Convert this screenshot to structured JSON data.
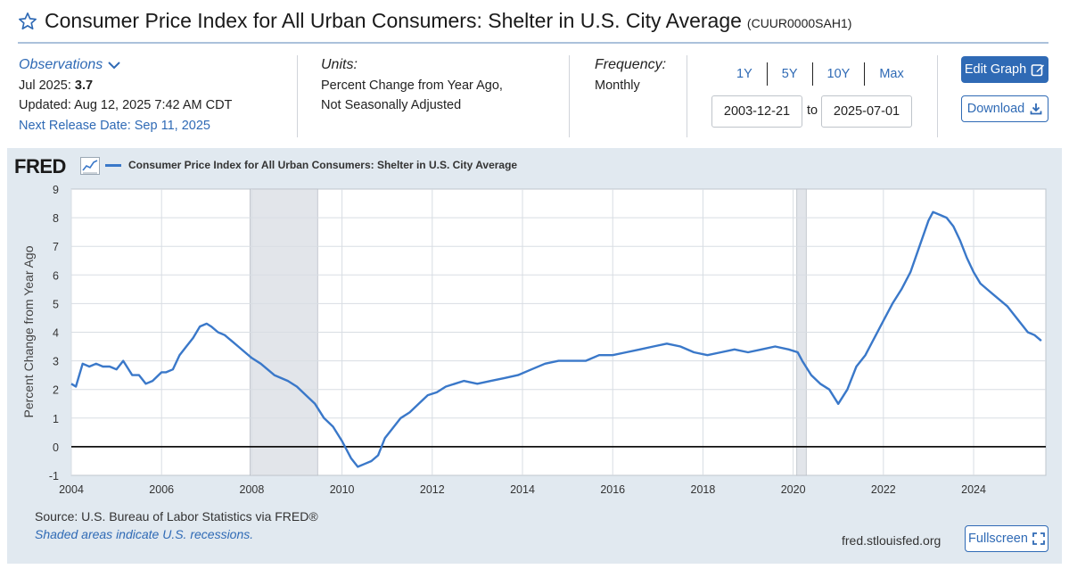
{
  "header": {
    "title": "Consumer Price Index for All Urban Consumers: Shelter in U.S. City Average",
    "series_id": "(CUUR0000SAH1)"
  },
  "observations": {
    "label": "Observations",
    "period": "Jul 2025:",
    "value": "3.7",
    "updated": "Updated: Aug 12, 2025 7:42 AM CDT",
    "next_release": "Next Release Date: Sep 11, 2025"
  },
  "units": {
    "label": "Units:",
    "line1": "Percent Change from Year Ago,",
    "line2": "Not Seasonally Adjusted"
  },
  "frequency": {
    "label": "Frequency:",
    "value": "Monthly"
  },
  "ranges": [
    "1Y",
    "5Y",
    "10Y",
    "Max"
  ],
  "date_range": {
    "start": "2003-12-21",
    "to": "to",
    "end": "2025-07-01"
  },
  "buttons": {
    "edit": "Edit Graph",
    "download": "Download",
    "fullscreen": "Fullscreen"
  },
  "graph": {
    "logo": "FRED",
    "legend": "Consumer Price Index for All Urban Consumers: Shelter in U.S. City Average",
    "source": "Source: U.S. Bureau of Labor Statistics via FRED®",
    "note": "Shaded areas indicate U.S. recessions.",
    "url": "fred.stlouisfed.org"
  },
  "colors": {
    "line": "#3a78c9",
    "recession": "#e2e5ea",
    "accent": "#2f6ab5",
    "panel": "#e1e9f0"
  },
  "chart_data": {
    "type": "line",
    "title": "",
    "xlabel": "",
    "ylabel": "Percent Change from Year Ago",
    "xlim": [
      2004.0,
      2025.6
    ],
    "ylim": [
      -1,
      9
    ],
    "yticks": [
      -1,
      0,
      1,
      2,
      3,
      4,
      5,
      6,
      7,
      8,
      9
    ],
    "xticks": [
      2004,
      2006,
      2008,
      2010,
      2012,
      2014,
      2016,
      2018,
      2020,
      2022,
      2024
    ],
    "grid": true,
    "legend_position": "top-left",
    "recessions": [
      [
        2007.96,
        2009.46
      ],
      [
        2020.08,
        2020.29
      ]
    ],
    "series": [
      {
        "name": "Consumer Price Index for All Urban Consumers: Shelter in U.S. City Average",
        "x": [
          2004.0,
          2004.1,
          2004.25,
          2004.4,
          2004.55,
          2004.7,
          2004.85,
          2005.0,
          2005.15,
          2005.35,
          2005.5,
          2005.65,
          2005.8,
          2006.0,
          2006.1,
          2006.25,
          2006.4,
          2006.55,
          2006.7,
          2006.85,
          2007.0,
          2007.1,
          2007.25,
          2007.4,
          2007.55,
          2007.7,
          2007.85,
          2008.0,
          2008.2,
          2008.35,
          2008.5,
          2008.65,
          2008.8,
          2009.0,
          2009.2,
          2009.4,
          2009.6,
          2009.8,
          2010.0,
          2010.2,
          2010.35,
          2010.5,
          2010.65,
          2010.8,
          2010.95,
          2011.1,
          2011.3,
          2011.5,
          2011.7,
          2011.9,
          2012.1,
          2012.3,
          2012.5,
          2012.7,
          2013.0,
          2013.3,
          2013.6,
          2013.9,
          2014.2,
          2014.5,
          2014.8,
          2015.1,
          2015.4,
          2015.7,
          2016.0,
          2016.3,
          2016.6,
          2016.9,
          2017.2,
          2017.5,
          2017.8,
          2018.1,
          2018.4,
          2018.7,
          2019.0,
          2019.3,
          2019.6,
          2019.9,
          2020.1,
          2020.2,
          2020.4,
          2020.6,
          2020.8,
          2021.0,
          2021.2,
          2021.4,
          2021.6,
          2021.8,
          2022.0,
          2022.2,
          2022.4,
          2022.6,
          2022.8,
          2023.0,
          2023.1,
          2023.25,
          2023.4,
          2023.55,
          2023.7,
          2023.85,
          2024.0,
          2024.15,
          2024.3,
          2024.45,
          2024.6,
          2024.75,
          2024.9,
          2025.05,
          2025.2,
          2025.35,
          2025.5
        ],
        "values": [
          2.2,
          2.1,
          2.9,
          2.8,
          2.9,
          2.8,
          2.8,
          2.7,
          3.0,
          2.5,
          2.5,
          2.2,
          2.3,
          2.6,
          2.6,
          2.7,
          3.2,
          3.5,
          3.8,
          4.2,
          4.3,
          4.2,
          4.0,
          3.9,
          3.7,
          3.5,
          3.3,
          3.1,
          2.9,
          2.7,
          2.5,
          2.4,
          2.3,
          2.1,
          1.8,
          1.5,
          1.0,
          0.7,
          0.2,
          -0.4,
          -0.7,
          -0.6,
          -0.5,
          -0.3,
          0.3,
          0.6,
          1.0,
          1.2,
          1.5,
          1.8,
          1.9,
          2.1,
          2.2,
          2.3,
          2.2,
          2.3,
          2.4,
          2.5,
          2.7,
          2.9,
          3.0,
          3.0,
          3.0,
          3.2,
          3.2,
          3.3,
          3.4,
          3.5,
          3.6,
          3.5,
          3.3,
          3.2,
          3.3,
          3.4,
          3.3,
          3.4,
          3.5,
          3.4,
          3.3,
          3.0,
          2.5,
          2.2,
          2.0,
          1.5,
          2.0,
          2.8,
          3.2,
          3.8,
          4.4,
          5.0,
          5.5,
          6.1,
          7.0,
          7.9,
          8.2,
          8.1,
          8.0,
          7.7,
          7.2,
          6.6,
          6.1,
          5.7,
          5.5,
          5.3,
          5.1,
          4.9,
          4.6,
          4.3,
          4.0,
          3.9,
          3.7
        ]
      }
    ]
  }
}
